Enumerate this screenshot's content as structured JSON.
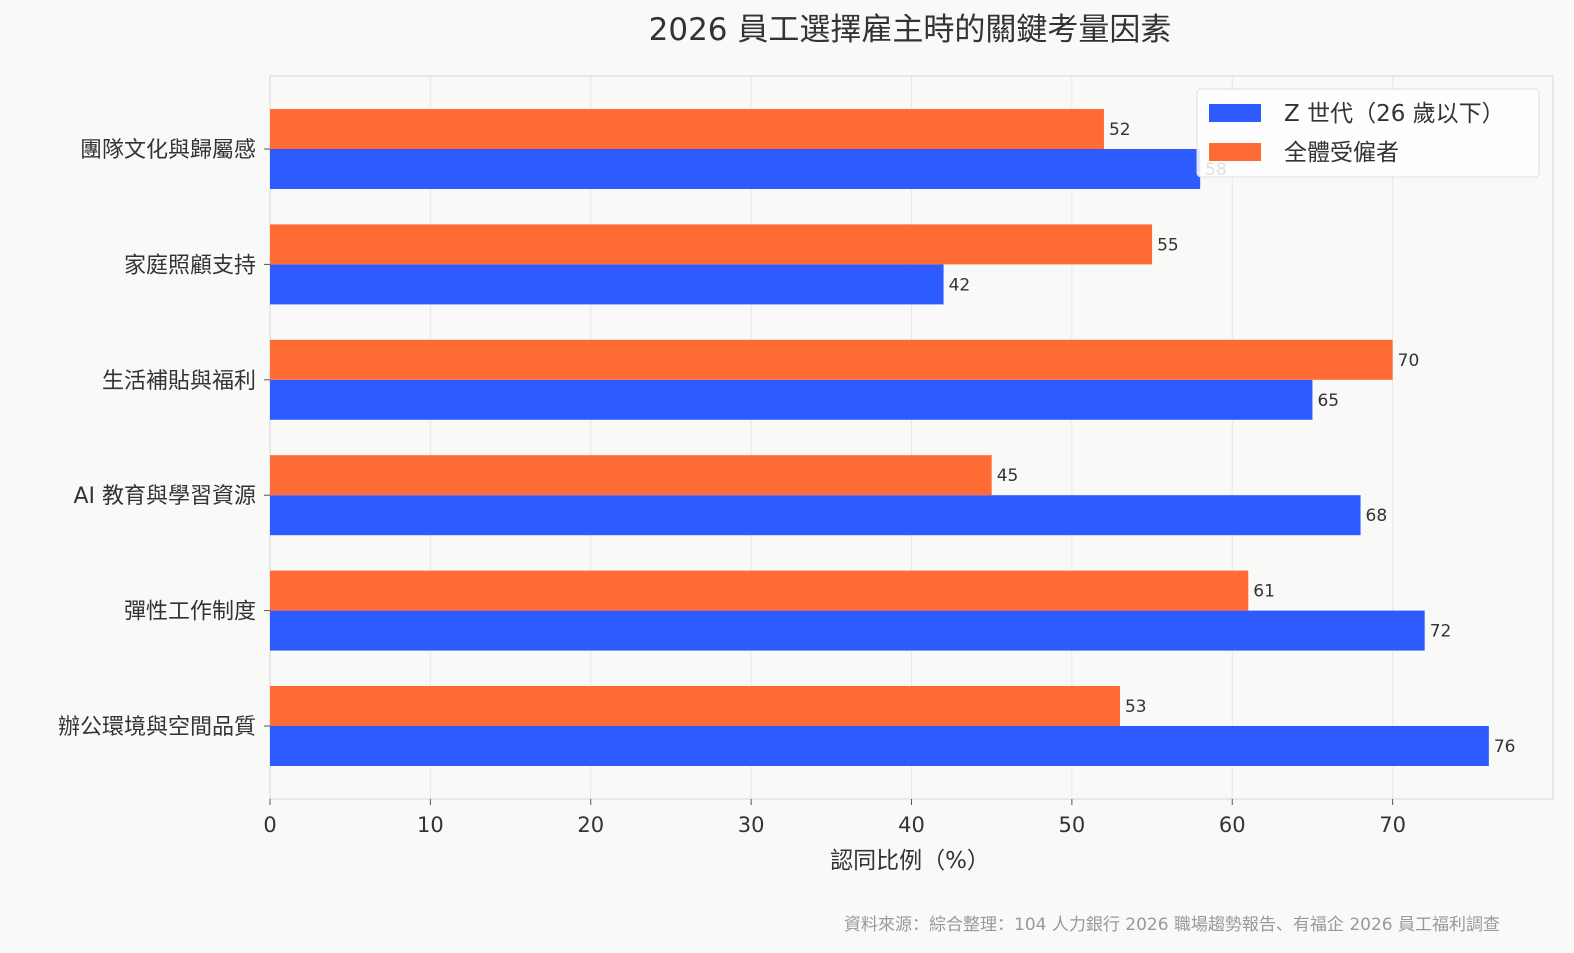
{
  "chart_data": {
    "type": "bar",
    "orientation": "horizontal",
    "title": "2026 員工選擇雇主時的關鍵考量因素",
    "xlabel": "認同比例（%）",
    "ylabel": "",
    "xlim": [
      0,
      80
    ],
    "xticks": [
      0,
      10,
      20,
      30,
      40,
      50,
      60,
      70
    ],
    "grid": true,
    "legend_position": "top-right",
    "categories": [
      "團隊文化與歸屬感",
      "家庭照顧支持",
      "生活補貼與福利",
      "AI 教育與學習資源",
      "彈性工作制度",
      "辦公環境與空間品質"
    ],
    "series": [
      {
        "name": "Z 世代（26 歲以下）",
        "color": "#2d5bff",
        "values": [
          58,
          42,
          65,
          68,
          72,
          76
        ]
      },
      {
        "name": "全體受僱者",
        "color": "#ff6b35",
        "values": [
          52,
          55,
          70,
          45,
          61,
          53
        ]
      }
    ]
  },
  "source_note": "資料來源：綜合整理：104 人力銀行 2026 職場趨勢報告、有福企 2026 員工福利調查"
}
